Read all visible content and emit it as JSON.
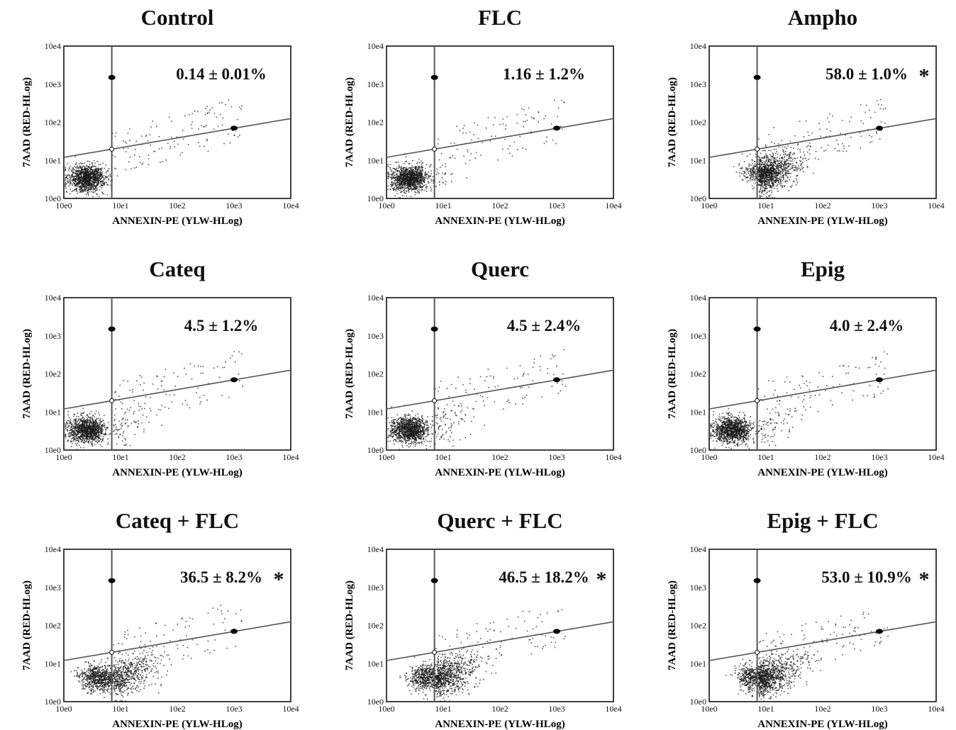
{
  "figure": {
    "panels": [
      {
        "title": "Control",
        "annotation": "0.14 ± 0.01%",
        "significant": false
      },
      {
        "title": "FLC",
        "annotation": "1.16 ± 1.2%",
        "significant": false
      },
      {
        "title": "Ampho",
        "annotation": "58.0 ± 1.0%",
        "significant": true
      },
      {
        "title": "Cateq",
        "annotation": "4.5 ± 1.2%",
        "significant": false
      },
      {
        "title": "Querc",
        "annotation": "4.5 ± 2.4%",
        "significant": false
      },
      {
        "title": "Epig",
        "annotation": "4.0 ± 2.4%",
        "significant": false
      },
      {
        "title": "Cateq + FLC",
        "annotation": "36.5 ± 8.2%",
        "significant": true
      },
      {
        "title": "Querc + FLC",
        "annotation": "46.5 ± 18.2%",
        "significant": true
      },
      {
        "title": "Epig + FLC",
        "annotation": "53.0 ± 10.9%",
        "significant": true
      }
    ],
    "significance_marker": "*"
  },
  "chart_data": {
    "type": "scatter",
    "xlabel": "ANNEXIN-PE (YLW-HLog)",
    "ylabel": "7AAD (RED-HLog)",
    "x_ticks": [
      "10e0",
      "10e1",
      "10e2",
      "10e3",
      "10e4"
    ],
    "y_ticks": [
      "10e0",
      "10e1",
      "10e2",
      "10e3",
      "10e4"
    ],
    "xlim": [
      1,
      10000
    ],
    "ylim": [
      1,
      10000
    ],
    "x_scale": "log",
    "y_scale": "log",
    "gate_x": 7,
    "gate_line_points": [
      [
        1,
        12
      ],
      [
        10000,
        125
      ]
    ],
    "gate_markers": [
      [
        7,
        1500
      ],
      [
        1000,
        70
      ]
    ],
    "populations": [
      {
        "panel": "Control",
        "main_cluster": [
          2.5,
          3.5
        ],
        "annexin_positive_percent": 0.14,
        "sd": 0.01
      },
      {
        "panel": "FLC",
        "main_cluster": [
          2.5,
          3.5
        ],
        "annexin_positive_percent": 1.16,
        "sd": 1.2
      },
      {
        "panel": "Ampho",
        "main_cluster": [
          8,
          5
        ],
        "annexin_positive_percent": 58.0,
        "sd": 1.0
      },
      {
        "panel": "Cateq",
        "main_cluster": [
          2.5,
          3.5
        ],
        "annexin_positive_percent": 4.5,
        "sd": 1.2
      },
      {
        "panel": "Querc",
        "main_cluster": [
          2.5,
          3.5
        ],
        "annexin_positive_percent": 4.5,
        "sd": 2.4
      },
      {
        "panel": "Epig",
        "main_cluster": [
          2.5,
          3.5
        ],
        "annexin_positive_percent": 4.0,
        "sd": 2.4
      },
      {
        "panel": "Cateq + FLC",
        "main_cluster": [
          4,
          4.5
        ],
        "annexin_positive_percent": 36.5,
        "sd": 8.2
      },
      {
        "panel": "Querc + FLC",
        "main_cluster": [
          5,
          4.5
        ],
        "annexin_positive_percent": 46.5,
        "sd": 18.2
      },
      {
        "panel": "Epig + FLC",
        "main_cluster": [
          6,
          4.5
        ],
        "annexin_positive_percent": 53.0,
        "sd": 10.9
      }
    ]
  },
  "colors": {
    "dots": "#1a1a1a",
    "gate_lines": "#555555",
    "frame": "#111111"
  }
}
